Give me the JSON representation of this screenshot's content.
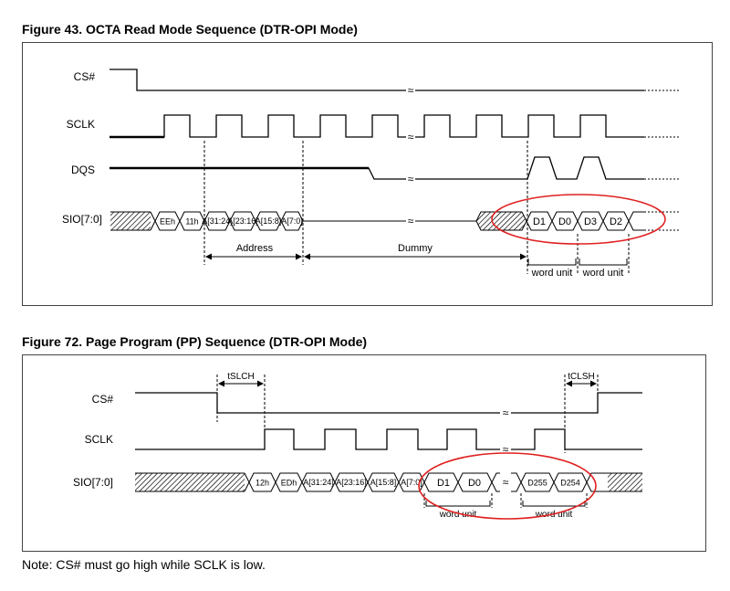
{
  "figure1": {
    "title": "Figure 43. OCTA Read Mode Sequence (DTR-OPI Mode)",
    "signals": {
      "cs": "CS#",
      "sclk": "SCLK",
      "dqs": "DQS",
      "sio": "SIO[7:0]"
    },
    "cmd": [
      "EEh",
      "11h"
    ],
    "addr": [
      "A[31:24]",
      "A[23:16]",
      "A[15:8]",
      "A[7:0]"
    ],
    "data": [
      "D1",
      "D0",
      "D3",
      "D2"
    ],
    "labels": {
      "address": "Address",
      "dummy": "Dummy",
      "word_unit": "word unit"
    }
  },
  "figure2": {
    "title": "Figure 72. Page Program (PP) Sequence (DTR-OPI Mode)",
    "signals": {
      "cs": "CS#",
      "sclk": "SCLK",
      "sio": "SIO[7:0]"
    },
    "cmd": [
      "12h",
      "EDh"
    ],
    "addr": [
      "A[31:24]",
      "A[23:16]",
      "A[15:8]",
      "A[7:0]"
    ],
    "data": [
      "D1",
      "D0",
      "D255",
      "D254"
    ],
    "labels": {
      "tslch": "tSLCH",
      "tclsh": "tCLSH",
      "word_unit": "word unit"
    }
  },
  "note": "Note: CS# must go high while SCLK is low.",
  "colors": {
    "highlight": "#e02020",
    "line": "#000000"
  },
  "icons": [
    "break-mark-icon",
    "arrow-icon"
  ]
}
